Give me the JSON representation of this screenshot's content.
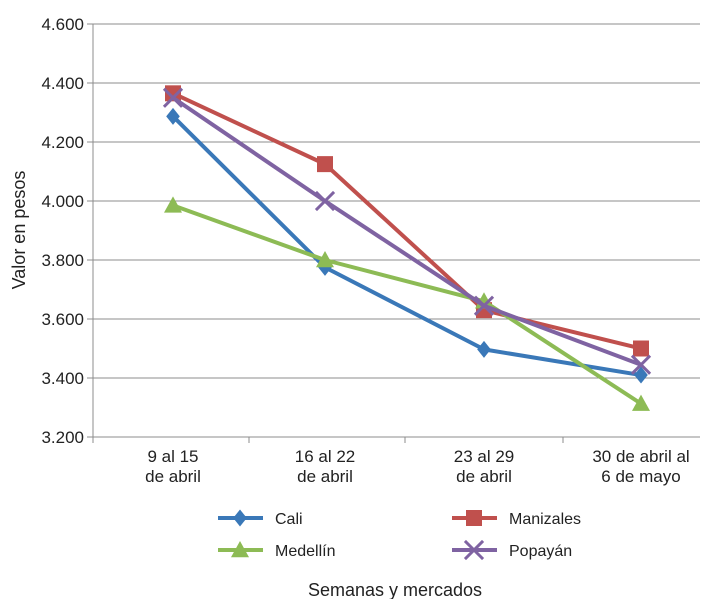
{
  "chart_data": {
    "type": "line",
    "title": "",
    "xlabel": "Semanas y mercados",
    "ylabel": "Valor en pesos",
    "categories": [
      [
        "9 al 15",
        "de abril"
      ],
      [
        "16 al 22",
        "de abril"
      ],
      [
        "23 al 29",
        "de abril"
      ],
      [
        "30 de abril al",
        "6 de mayo"
      ]
    ],
    "ylim": [
      3200,
      4600
    ],
    "ytick_values": [
      3200,
      3400,
      3600,
      3800,
      4000,
      4200,
      4400,
      4600
    ],
    "ytick_labels": [
      "3.200",
      "3.400",
      "3.600",
      "3.800",
      "4.000",
      "4.200",
      "4.400",
      "4.600"
    ],
    "grid": "horizontal",
    "legend_position": "bottom",
    "series": [
      {
        "name": "Cali",
        "color": "#3a78b8",
        "marker": "diamond",
        "values": [
          4287,
          3775,
          3497,
          3410
        ]
      },
      {
        "name": "Manizales",
        "color": "#c0504d",
        "marker": "square",
        "values": [
          4365,
          4125,
          3630,
          3500
        ]
      },
      {
        "name": "Medellín",
        "color": "#8dbb55",
        "marker": "triangle",
        "values": [
          3985,
          3800,
          3660,
          3313
        ]
      },
      {
        "name": "Popayán",
        "color": "#7f63a2",
        "marker": "x",
        "values": [
          4350,
          4000,
          3645,
          3445
        ]
      }
    ]
  }
}
